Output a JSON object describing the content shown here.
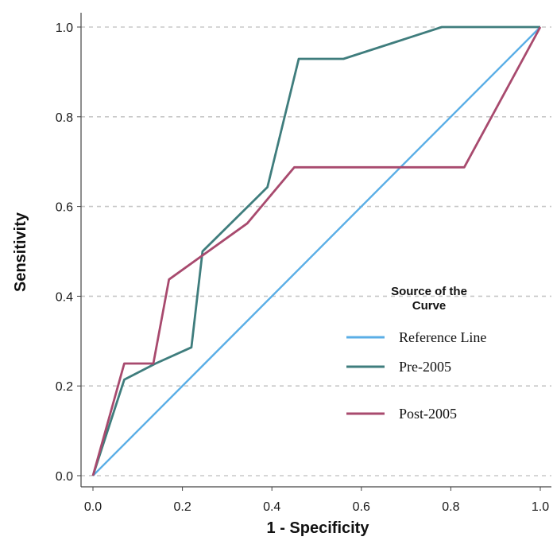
{
  "chart_data": {
    "type": "line",
    "xlabel": "1 - Specificity",
    "ylabel": "Sensitivity",
    "xlim": [
      0,
      1
    ],
    "ylim": [
      0,
      1
    ],
    "x_ticks": [
      "0.0",
      "0.2",
      "0.4",
      "0.6",
      "0.8",
      "1.0"
    ],
    "y_ticks": [
      "0.0",
      "0.2",
      "0.4",
      "0.6",
      "0.8",
      "1.0"
    ],
    "grid": "horizontal dashed",
    "legend": {
      "title_line1": "Source of the",
      "title_line2": "Curve",
      "placement": "center-right"
    },
    "series": [
      {
        "name": "Reference Line",
        "color": "#5aaee6",
        "points": [
          [
            0,
            0
          ],
          [
            1,
            1
          ]
        ]
      },
      {
        "name": "Pre-2005",
        "color": "#3f7d7d",
        "points": [
          [
            0,
            0
          ],
          [
            0.07,
            0.214
          ],
          [
            0.14,
            0.25
          ],
          [
            0.22,
            0.286
          ],
          [
            0.245,
            0.5
          ],
          [
            0.39,
            0.643
          ],
          [
            0.46,
            0.929
          ],
          [
            0.56,
            0.929
          ],
          [
            0.78,
            1.0
          ],
          [
            1.0,
            1.0
          ]
        ]
      },
      {
        "name": "Post-2005",
        "color": "#a84a6e",
        "points": [
          [
            0,
            0
          ],
          [
            0.07,
            0.25
          ],
          [
            0.135,
            0.25
          ],
          [
            0.17,
            0.4375
          ],
          [
            0.345,
            0.5625
          ],
          [
            0.45,
            0.6875
          ],
          [
            0.83,
            0.6875
          ],
          [
            1.0,
            1.0
          ]
        ]
      }
    ]
  }
}
